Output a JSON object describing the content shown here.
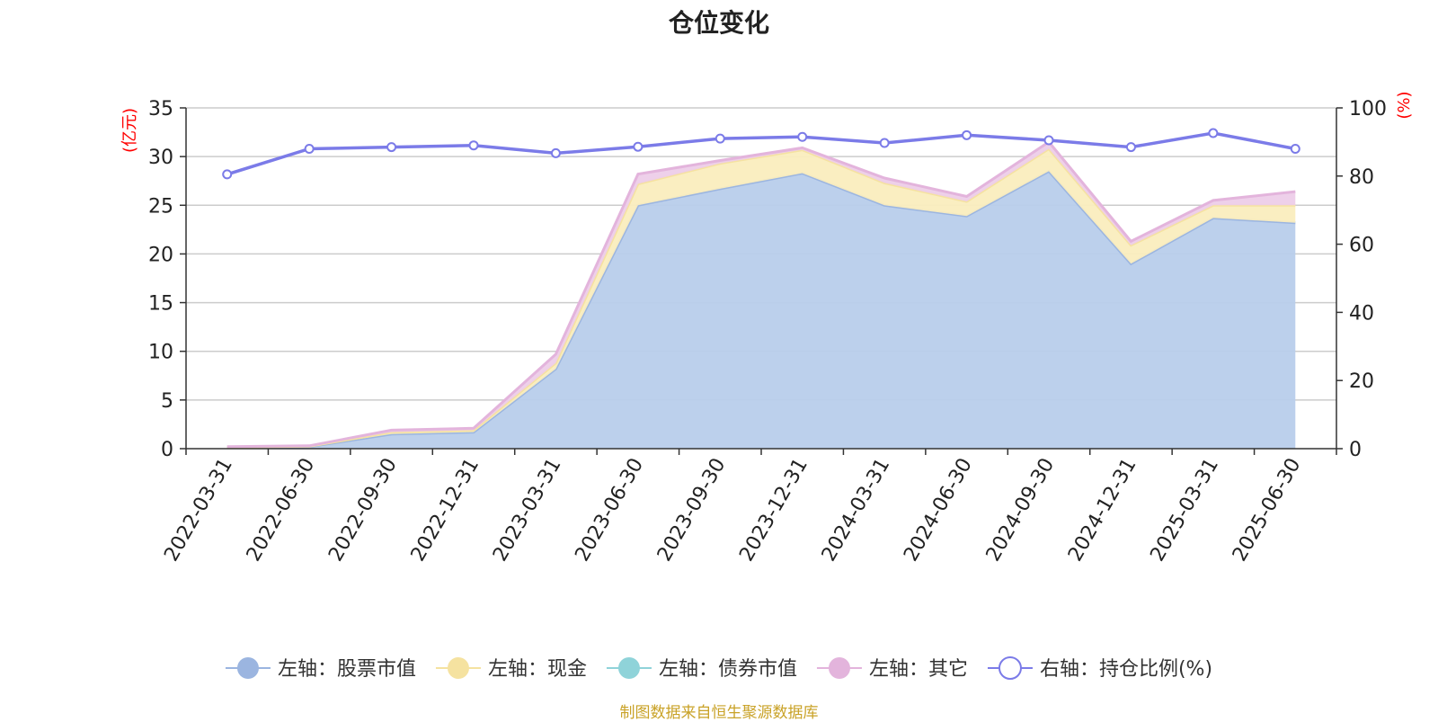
{
  "chart_data": {
    "type": "area",
    "title": "仓位变化",
    "left_axis_unit": "(亿元)",
    "right_axis_unit": "(%)",
    "categories": [
      "2022-03-31",
      "2022-06-30",
      "2022-09-30",
      "2022-12-31",
      "2023-03-31",
      "2023-06-30",
      "2023-09-30",
      "2023-12-31",
      "2024-03-31",
      "2024-06-30",
      "2024-09-30",
      "2024-12-31",
      "2025-03-31",
      "2025-06-30"
    ],
    "ylim_left": [
      0,
      35
    ],
    "yticks_left": [
      0,
      5,
      10,
      15,
      20,
      25,
      30,
      35
    ],
    "ylim_right": [
      0,
      100
    ],
    "yticks_right": [
      0,
      20,
      40,
      60,
      80,
      100
    ],
    "grid": true,
    "legend_position": "bottom",
    "series": [
      {
        "name": "左轴：股票市值",
        "axis": "left",
        "stacked": true,
        "color": "#9bb5e0",
        "fill": "#b8cdeb",
        "values": [
          0.1,
          0.2,
          1.5,
          1.7,
          8.2,
          25.0,
          26.7,
          28.3,
          25.0,
          23.9,
          28.5,
          19.0,
          23.7,
          23.2
        ]
      },
      {
        "name": "左轴：现金",
        "axis": "left",
        "stacked": true,
        "color": "#f5e2a0",
        "fill": "#faedbe",
        "values": [
          0.05,
          0.05,
          0.2,
          0.2,
          0.6,
          2.2,
          2.6,
          2.4,
          2.3,
          1.5,
          2.3,
          1.9,
          1.3,
          1.8
        ]
      },
      {
        "name": "左轴：债券市值",
        "axis": "left",
        "stacked": true,
        "color": "#8fd3d9",
        "fill": "#b5e3e7",
        "values": [
          0,
          0,
          0,
          0,
          0,
          0,
          0,
          0,
          0,
          0,
          0,
          0,
          0,
          0
        ]
      },
      {
        "name": "左轴：其它",
        "axis": "left",
        "stacked": true,
        "color": "#e3b4dc",
        "fill": "#edcde9",
        "values": [
          0.05,
          0.05,
          0.2,
          0.2,
          0.9,
          1.0,
          0.3,
          0.2,
          0.5,
          0.5,
          0.7,
          0.4,
          0.5,
          1.4
        ]
      },
      {
        "name": "右轴：持仓比例(%)",
        "axis": "right",
        "stacked": false,
        "color": "#7b7be8",
        "values": [
          80.5,
          88.0,
          88.5,
          89.0,
          86.7,
          88.6,
          91.0,
          91.5,
          89.7,
          92.0,
          90.5,
          88.5,
          92.6,
          88.0
        ]
      }
    ]
  },
  "footer": "制图数据来自恒生聚源数据库"
}
